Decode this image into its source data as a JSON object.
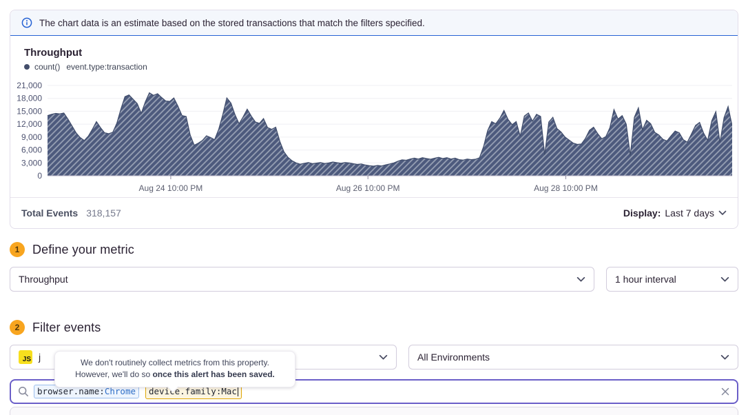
{
  "banner": {
    "text": "The chart data is an estimate based on the stored transactions that match the filters specified."
  },
  "chart": {
    "title": "Throughput",
    "legend_series": "count()",
    "legend_query": "event.type:transaction"
  },
  "chart_data": {
    "type": "area",
    "title": "Throughput",
    "series_name": "count() event.type:transaction",
    "ylim": [
      0,
      21000
    ],
    "grid": true,
    "legend_position": "top-left",
    "y_ticks": [
      {
        "value": 0,
        "label": "0"
      },
      {
        "value": 3000,
        "label": "3,000"
      },
      {
        "value": 6000,
        "label": "6,000"
      },
      {
        "value": 9000,
        "label": "9,000"
      },
      {
        "value": 12000,
        "label": "12,000"
      },
      {
        "value": 15000,
        "label": "15,000"
      },
      {
        "value": 18000,
        "label": "18,000"
      },
      {
        "value": 21000,
        "label": "21,000"
      }
    ],
    "x_ticks": [
      {
        "label": "Aug 24 10:00 PM",
        "pos": 0.18
      },
      {
        "label": "Aug 26 10:00 PM",
        "pos": 0.468
      },
      {
        "label": "Aug 28 10:00 PM",
        "pos": 0.757
      }
    ],
    "colors": {
      "fill": "#4d5a7d",
      "hatch": "#9aa3b6",
      "stroke": "#3f4c6b"
    },
    "values": [
      14000,
      14300,
      14500,
      14400,
      14600,
      13200,
      11600,
      10000,
      8900,
      8200,
      9200,
      10800,
      12600,
      11200,
      10000,
      9800,
      10100,
      12200,
      15500,
      18400,
      18800,
      17800,
      16800,
      14500,
      17200,
      19300,
      18700,
      19100,
      18200,
      17400,
      17300,
      18100,
      16200,
      14000,
      13800,
      9500,
      7100,
      7600,
      8200,
      9300,
      8900,
      8400,
      10800,
      14200,
      18100,
      16900,
      14200,
      12100,
      13700,
      15500,
      13900,
      12500,
      12200,
      13300,
      11200,
      10800,
      11300,
      8000,
      5600,
      4300,
      3500,
      3000,
      2700,
      2900,
      3100,
      2800,
      2950,
      3100,
      2850,
      3000,
      3200,
      3050,
      2900,
      3100,
      3000,
      2800,
      2650,
      2750,
      2500,
      2350,
      2250,
      2400,
      2300,
      2550,
      2750,
      3000,
      3400,
      3700,
      3600,
      3900,
      4100,
      3900,
      4200,
      4000,
      3850,
      4100,
      4300,
      4000,
      4200,
      3900,
      4100,
      3750,
      3650,
      3900,
      3750,
      3850,
      4200,
      6800,
      10500,
      12600,
      12100,
      13400,
      15200,
      13100,
      11900,
      12600,
      9200,
      13900,
      14600,
      12700,
      14300,
      13800,
      4900,
      12500,
      13600,
      11000,
      10200,
      9000,
      8300,
      7600,
      7300,
      7400,
      8700,
      10600,
      11300,
      9800,
      8600,
      9100,
      11200,
      15400,
      13200,
      14000,
      12000,
      4700,
      13600,
      15800,
      10700,
      12900,
      12100,
      10100,
      9500,
      8500,
      8100,
      9300,
      10400,
      10000,
      8400,
      7800,
      9700,
      11700,
      12400,
      9900,
      8200,
      12800,
      14900,
      7700,
      13500,
      16100,
      11600
    ]
  },
  "footer": {
    "total_events_label": "Total Events",
    "total_events_value": "318,157",
    "display_label": "Display:",
    "display_value": "Last 7 days"
  },
  "steps": {
    "metric": {
      "number": "1",
      "title": "Define your metric",
      "metric_select_value": "Throughput",
      "interval_select_value": "1 hour interval"
    },
    "filter": {
      "number": "2",
      "title": "Filter events",
      "project_platform_badge": "JS",
      "project_visible_text": "j",
      "environment_select_value": "All Environments"
    }
  },
  "tooltip": {
    "line1": "We don't routinely collect metrics from this property.",
    "line2_prefix": "However, we'll do so ",
    "line2_bold": "once this alert has been saved."
  },
  "search": {
    "tokens": [
      {
        "key": "browser.name:",
        "value": "Chrome",
        "style": "blue"
      },
      {
        "key": "device.family:",
        "value": "Mac",
        "style": "warning"
      }
    ]
  },
  "icons": {
    "info": "ⓘ",
    "chevron_down": "▾",
    "search": "⌕",
    "close": "✕",
    "legend_dot": "●"
  },
  "colors": {
    "accent_purple": "#6a5ec8",
    "banner_blue": "#2562d4",
    "step_badge_amber": "#f8a51f",
    "token_blue_border": "#9bbeed",
    "token_warn_border": "#dfa604",
    "js_platform_yellow": "#f7df1e"
  }
}
